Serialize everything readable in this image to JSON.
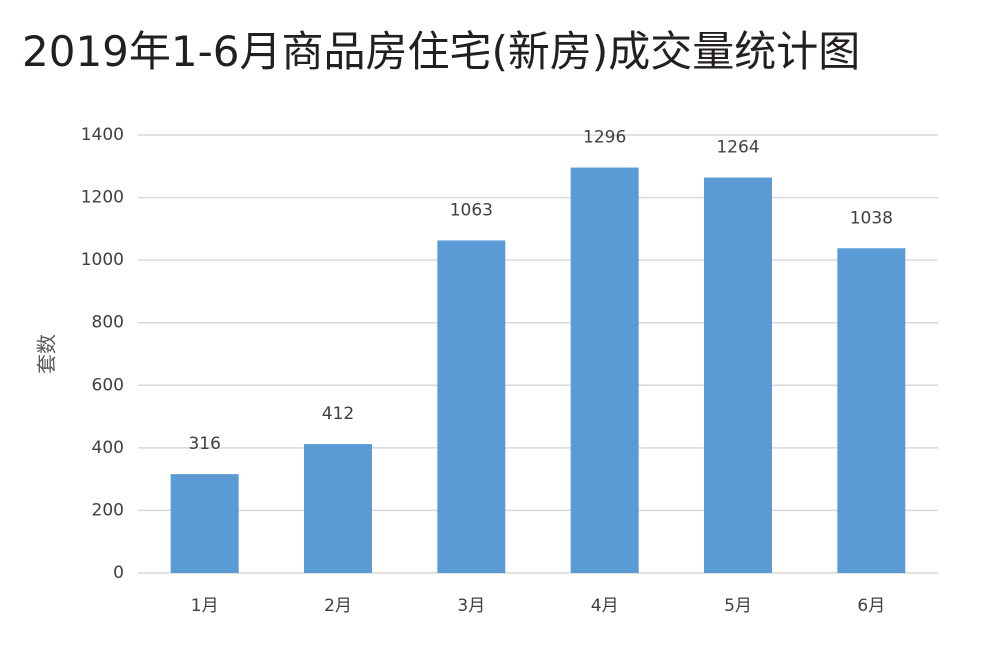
{
  "chart_data": {
    "type": "bar",
    "title": "2019年1-6月商品房住宅(新房)成交量统计图",
    "y_label": "套数",
    "categories": [
      "1月",
      "2月",
      "3月",
      "4月",
      "5月",
      "6月"
    ],
    "values": [
      316,
      412,
      1063,
      1296,
      1264,
      1038
    ],
    "color": "#5b9bd5",
    "ylim": [
      0,
      1400
    ],
    "yticks": [
      0,
      200,
      400,
      600,
      800,
      1000,
      1200,
      1400
    ],
    "grid": true
  }
}
